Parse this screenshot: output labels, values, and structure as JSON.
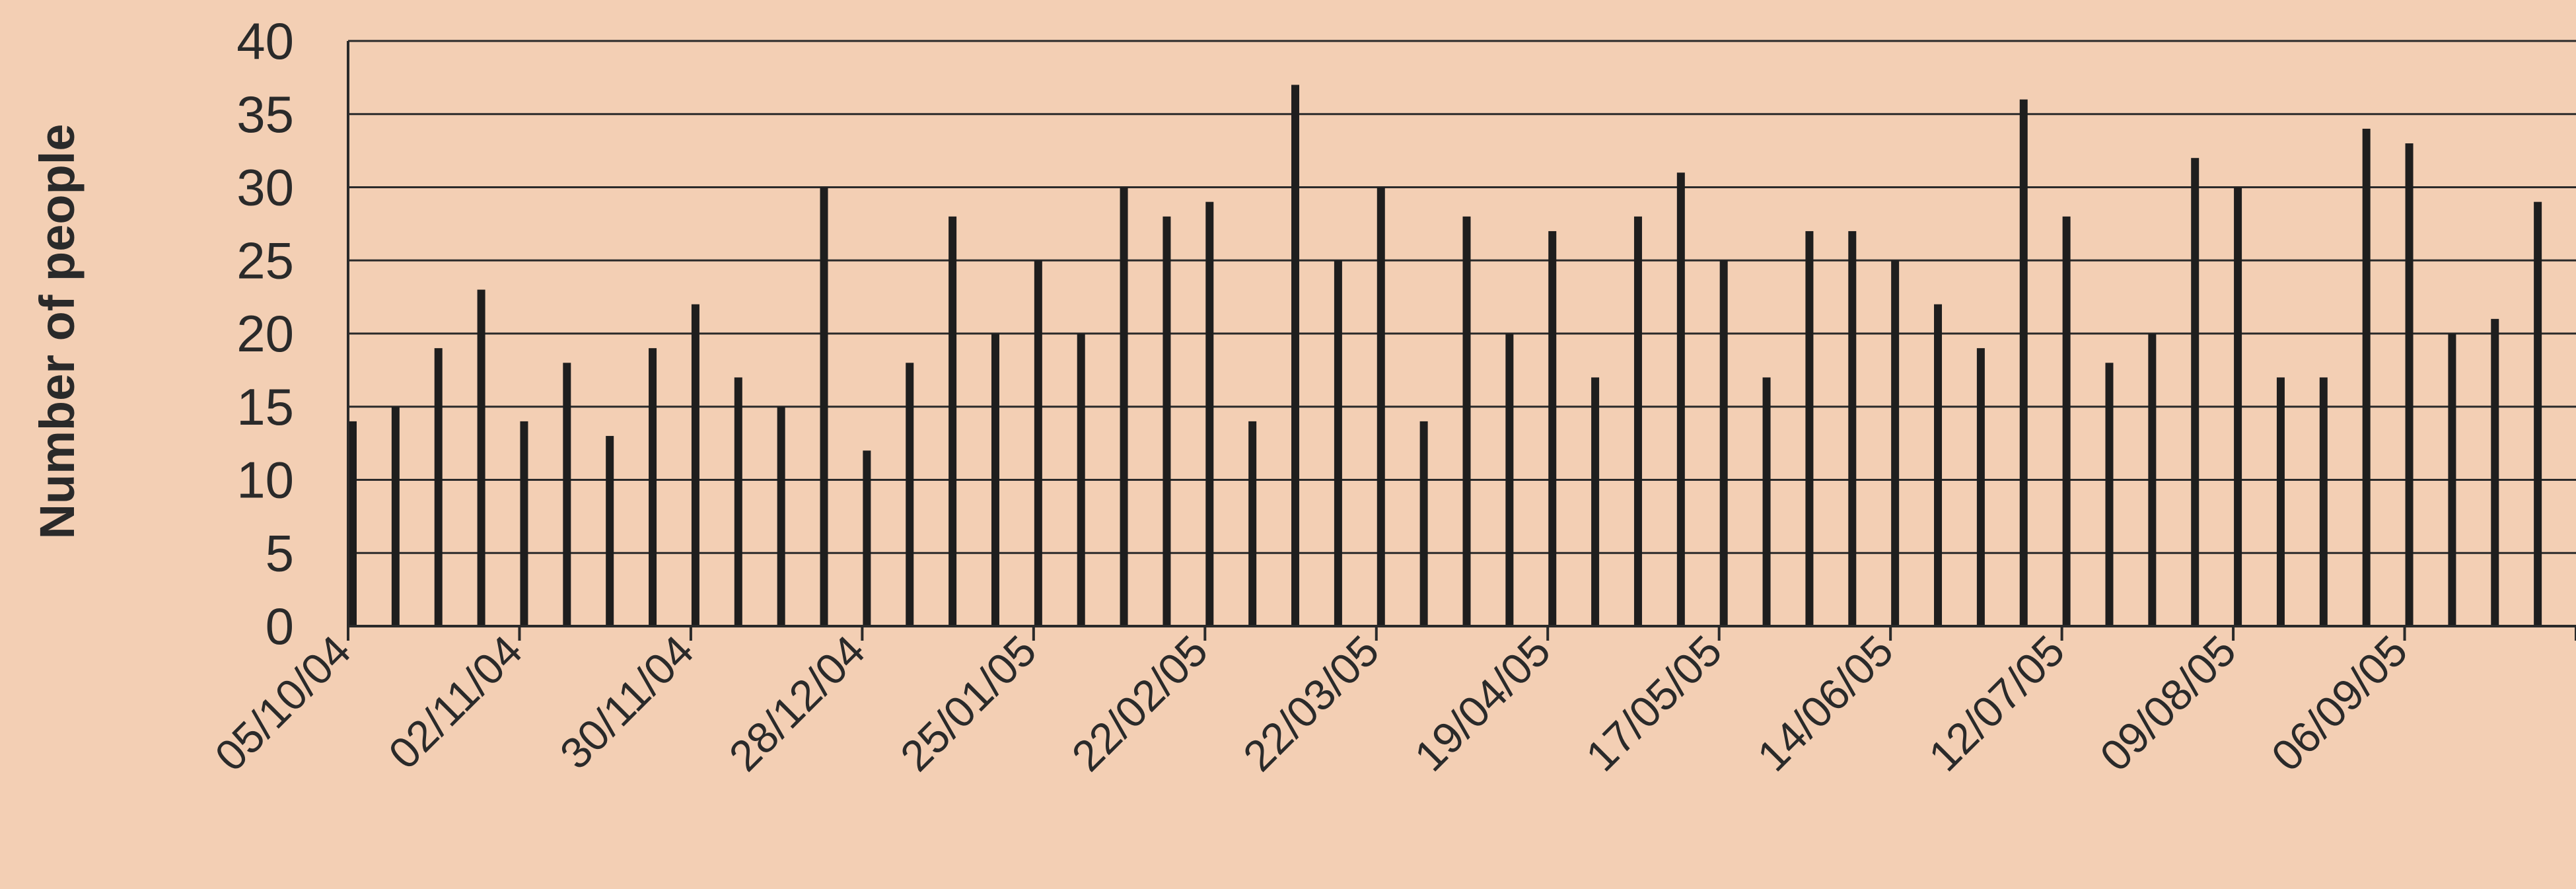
{
  "chart_data": {
    "type": "bar",
    "title": "",
    "xlabel": "",
    "ylabel": "Number of people",
    "ylim": [
      0,
      40
    ],
    "yticks": [
      0,
      5,
      10,
      15,
      20,
      25,
      30,
      35,
      40
    ],
    "grid": true,
    "x_tick_labels": [
      "05/10/04",
      "02/11/04",
      "30/11/04",
      "28/12/04",
      "25/01/05",
      "22/02/05",
      "22/03/05",
      "19/04/05",
      "17/05/05",
      "14/06/05",
      "12/07/05",
      "09/08/05",
      "06/09/05"
    ],
    "values": [
      14,
      15,
      19,
      23,
      14,
      18,
      13,
      19,
      22,
      17,
      15,
      30,
      12,
      18,
      28,
      20,
      25,
      20,
      30,
      28,
      29,
      14,
      37,
      25,
      30,
      14,
      28,
      20,
      27,
      17,
      28,
      31,
      25,
      17,
      27,
      27,
      25,
      22,
      19,
      36,
      28,
      18,
      20,
      32,
      30,
      17,
      17,
      34,
      33,
      20,
      21,
      29
    ]
  },
  "colors": {
    "background": "#f3cfb4",
    "bars": "#1e1e1e",
    "gridlines": "#2a2a2a",
    "text": "#2a2a2a"
  }
}
